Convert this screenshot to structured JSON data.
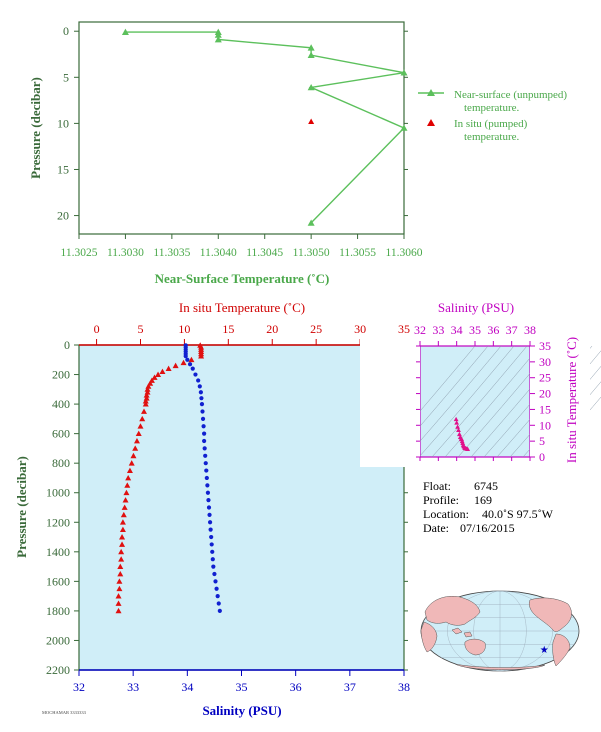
{
  "chart_data": [
    {
      "id": "near_surface",
      "type": "line",
      "xlabel": "Near-Surface Temperature (˚C)",
      "ylabel": "Pressure (decibar)",
      "xlim": [
        11.3025,
        11.306
      ],
      "ylim": [
        22,
        -1
      ],
      "x_ticks": [
        "11.3025",
        "11.3030",
        "11.3035",
        "11.3040",
        "11.3045",
        "11.3050",
        "11.3055",
        "11.3060"
      ],
      "x_tick_values": [
        11.3025,
        11.303,
        11.3035,
        11.304,
        11.3045,
        11.305,
        11.3055,
        11.306
      ],
      "y_ticks": [
        "0",
        "5",
        "10",
        "15",
        "20"
      ],
      "y_tick_values": [
        0,
        5,
        10,
        15,
        20
      ],
      "colors": {
        "unpumped": "#5cc05c",
        "pumped": "#e00000",
        "axis": "#3a6a3a",
        "label": "#4aa84a"
      },
      "series": [
        {
          "name": "Near-surface (unpumped)\ntemperature.",
          "style": "line-triangle",
          "points": [
            [
              11.303,
              0.1
            ],
            [
              11.304,
              0.1
            ],
            [
              11.304,
              0.4
            ],
            [
              11.304,
              0.9
            ],
            [
              11.305,
              1.8
            ],
            [
              11.305,
              2.6
            ],
            [
              11.306,
              4.5
            ],
            [
              11.305,
              6.1
            ],
            [
              11.306,
              10.5
            ],
            [
              11.305,
              20.8
            ]
          ]
        },
        {
          "name": "In situ (pumped)\ntemperature.",
          "style": "triangle",
          "points": [
            [
              11.305,
              9.8
            ]
          ]
        }
      ]
    },
    {
      "id": "profile",
      "type": "scatter",
      "title_top": "In situ Temperature (˚C)",
      "xlabel": "Salinity (PSU)",
      "ylabel": "Pressure (decibar)",
      "temp_lim": [
        -2,
        35
      ],
      "sal_lim": [
        32,
        38
      ],
      "ylim": [
        2200,
        0
      ],
      "temp_ticks": [
        "0",
        "5",
        "10",
        "15",
        "20",
        "25",
        "30",
        "35"
      ],
      "temp_tick_values": [
        0,
        5,
        10,
        15,
        20,
        25,
        30,
        35
      ],
      "sal_ticks": [
        "32",
        "33",
        "34",
        "35",
        "36",
        "37",
        "38"
      ],
      "sal_tick_values": [
        32,
        33,
        34,
        35,
        36,
        37,
        38
      ],
      "y_ticks": [
        "0",
        "200",
        "400",
        "600",
        "800",
        "1000",
        "1200",
        "1400",
        "1600",
        "1800",
        "2000",
        "2200"
      ],
      "y_tick_values": [
        0,
        200,
        400,
        600,
        800,
        1000,
        1200,
        1400,
        1600,
        1800,
        2000,
        2200
      ],
      "colors": {
        "temperature": "#e01010",
        "salinity": "#1020d0",
        "background": "#d0eef8",
        "axis": "#3a6a3a",
        "temp_axis": "#d00000",
        "sal_axis": "#0000c0"
      },
      "temperature": [
        [
          11.8,
          2
        ],
        [
          11.9,
          15
        ],
        [
          11.9,
          30
        ],
        [
          11.9,
          45
        ],
        [
          11.9,
          60
        ],
        [
          11.9,
          75
        ],
        [
          10.8,
          100
        ],
        [
          9.9,
          120
        ],
        [
          9.0,
          140
        ],
        [
          8.2,
          160
        ],
        [
          7.5,
          180
        ],
        [
          7.0,
          200
        ],
        [
          6.6,
          220
        ],
        [
          6.3,
          240
        ],
        [
          6.1,
          260
        ],
        [
          5.9,
          280
        ],
        [
          5.8,
          300
        ],
        [
          5.8,
          320
        ],
        [
          5.7,
          340
        ],
        [
          5.7,
          360
        ],
        [
          5.6,
          380
        ],
        [
          5.6,
          400
        ],
        [
          5.4,
          450
        ],
        [
          5.2,
          500
        ],
        [
          5.0,
          550
        ],
        [
          4.8,
          600
        ],
        [
          4.6,
          650
        ],
        [
          4.4,
          700
        ],
        [
          4.2,
          750
        ],
        [
          4.0,
          800
        ],
        [
          3.8,
          850
        ],
        [
          3.6,
          900
        ],
        [
          3.5,
          950
        ],
        [
          3.4,
          1000
        ],
        [
          3.3,
          1050
        ],
        [
          3.2,
          1100
        ],
        [
          3.1,
          1150
        ],
        [
          3.0,
          1200
        ],
        [
          3.0,
          1250
        ],
        [
          2.9,
          1300
        ],
        [
          2.9,
          1350
        ],
        [
          2.8,
          1400
        ],
        [
          2.8,
          1450
        ],
        [
          2.7,
          1500
        ],
        [
          2.7,
          1550
        ],
        [
          2.6,
          1600
        ],
        [
          2.6,
          1650
        ],
        [
          2.5,
          1700
        ],
        [
          2.5,
          1750
        ],
        [
          2.5,
          1800
        ]
      ],
      "salinity": [
        [
          33.97,
          2
        ],
        [
          33.97,
          15
        ],
        [
          33.97,
          30
        ],
        [
          33.97,
          45
        ],
        [
          33.97,
          60
        ],
        [
          33.97,
          75
        ],
        [
          34.0,
          100
        ],
        [
          34.05,
          130
        ],
        [
          34.1,
          160
        ],
        [
          34.15,
          200
        ],
        [
          34.2,
          240
        ],
        [
          34.23,
          280
        ],
        [
          34.25,
          320
        ],
        [
          34.26,
          360
        ],
        [
          34.27,
          400
        ],
        [
          34.28,
          450
        ],
        [
          34.29,
          500
        ],
        [
          34.3,
          550
        ],
        [
          34.31,
          600
        ],
        [
          34.31,
          650
        ],
        [
          34.32,
          700
        ],
        [
          34.33,
          750
        ],
        [
          34.34,
          800
        ],
        [
          34.35,
          850
        ],
        [
          34.36,
          900
        ],
        [
          34.37,
          950
        ],
        [
          34.38,
          1000
        ],
        [
          34.39,
          1050
        ],
        [
          34.4,
          1100
        ],
        [
          34.41,
          1150
        ],
        [
          34.42,
          1200
        ],
        [
          34.43,
          1250
        ],
        [
          34.44,
          1300
        ],
        [
          34.45,
          1350
        ],
        [
          34.46,
          1400
        ],
        [
          34.47,
          1450
        ],
        [
          34.48,
          1500
        ],
        [
          34.5,
          1550
        ],
        [
          34.52,
          1600
        ],
        [
          34.54,
          1650
        ],
        [
          34.56,
          1700
        ],
        [
          34.58,
          1750
        ],
        [
          34.6,
          1800
        ]
      ]
    },
    {
      "id": "ts_diagram",
      "type": "scatter",
      "title_top": "Salinity (PSU)",
      "ylabel": "In situ Temperature (˚C)",
      "xlim": [
        32,
        38
      ],
      "ylim": [
        0,
        35
      ],
      "x_ticks": [
        "32",
        "33",
        "34",
        "35",
        "36",
        "37",
        "38"
      ],
      "x_tick_values": [
        32,
        33,
        34,
        35,
        36,
        37,
        38
      ],
      "y_ticks": [
        "0",
        "5",
        "10",
        "15",
        "20",
        "25",
        "30",
        "35"
      ],
      "y_tick_values": [
        0,
        5,
        10,
        15,
        20,
        25,
        30,
        35
      ],
      "colors": {
        "points": "#e0108a",
        "axis": "#c000c0",
        "contour": "#8898a8",
        "background": "#d0eef8"
      },
      "points": [
        [
          33.97,
          11.9
        ],
        [
          34.0,
          10.8
        ],
        [
          34.05,
          9.5
        ],
        [
          34.1,
          8.5
        ],
        [
          34.15,
          7.2
        ],
        [
          34.2,
          6.3
        ],
        [
          34.25,
          5.8
        ],
        [
          34.27,
          5.6
        ],
        [
          34.3,
          5.0
        ],
        [
          34.33,
          4.4
        ],
        [
          34.36,
          3.8
        ],
        [
          34.38,
          3.4
        ],
        [
          34.42,
          3.0
        ],
        [
          34.46,
          2.8
        ],
        [
          34.5,
          2.7
        ],
        [
          34.55,
          2.6
        ],
        [
          34.6,
          2.5
        ]
      ]
    }
  ],
  "float_info": {
    "float_label": "Float:",
    "float_value": "6745",
    "profile_label": "Profile:",
    "profile_value": "169",
    "location_label": "Location:",
    "location_value": "40.0˚S  97.5˚W",
    "date_label": "Date:",
    "date_value": "07/16/2015"
  },
  "map": {
    "marker_color": "#0000c0",
    "land_color": "#f0b8b8",
    "ocean_color": "#d0eef8",
    "marker_lon": -97.5,
    "marker_lat": -40.0
  },
  "footer_text": "MOCHAMAR 3333333"
}
